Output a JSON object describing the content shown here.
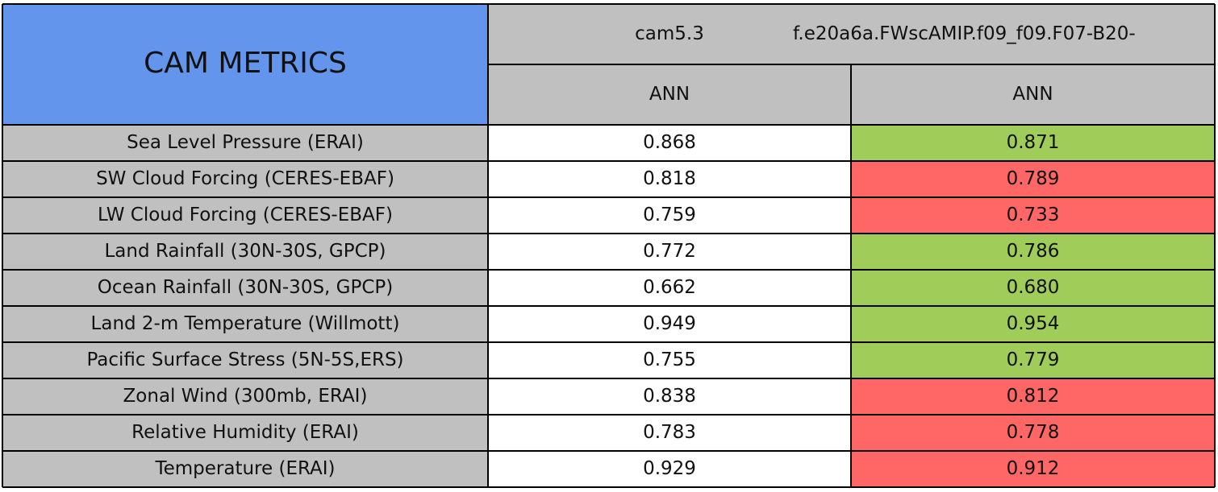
{
  "header": {
    "title": "CAM METRICS",
    "columns": [
      "cam5.3",
      "f.e20a6a.FWscAMIP.f09_f09.F07-B20-"
    ],
    "seasons": [
      "ANN",
      "ANN"
    ]
  },
  "table": {
    "rows": [
      {
        "label": "Sea Level Pressure (ERAI)",
        "values": [
          "0.868",
          "0.871"
        ],
        "color": "#a0cc5a"
      },
      {
        "label": "SW Cloud Forcing (CERES-EBAF)",
        "values": [
          "0.818",
          "0.789"
        ],
        "color": "#ff6666"
      },
      {
        "label": "LW Cloud Forcing (CERES-EBAF)",
        "values": [
          "0.759",
          "0.733"
        ],
        "color": "#ff6666"
      },
      {
        "label": "Land Rainfall (30N-30S, GPCP)",
        "values": [
          "0.772",
          "0.786"
        ],
        "color": "#a0cc5a"
      },
      {
        "label": "Ocean Rainfall (30N-30S, GPCP)",
        "values": [
          "0.662",
          "0.680"
        ],
        "color": "#a0cc5a"
      },
      {
        "label": "Land 2-m Temperature (Willmott)",
        "values": [
          "0.949",
          "0.954"
        ],
        "color": "#a0cc5a"
      },
      {
        "label": "Pacific Surface Stress (5N-5S,ERS)",
        "values": [
          "0.755",
          "0.779"
        ],
        "color": "#a0cc5a"
      },
      {
        "label": "Zonal Wind (300mb, ERAI)",
        "values": [
          "0.838",
          "0.812"
        ],
        "color": "#ff6666"
      },
      {
        "label": "Relative Humidity (ERAI)",
        "values": [
          "0.783",
          "0.778"
        ],
        "color": "#ff6666"
      },
      {
        "label": "Temperature (ERAI)",
        "values": [
          "0.929",
          "0.912"
        ],
        "color": "#ff6666"
      }
    ]
  }
}
